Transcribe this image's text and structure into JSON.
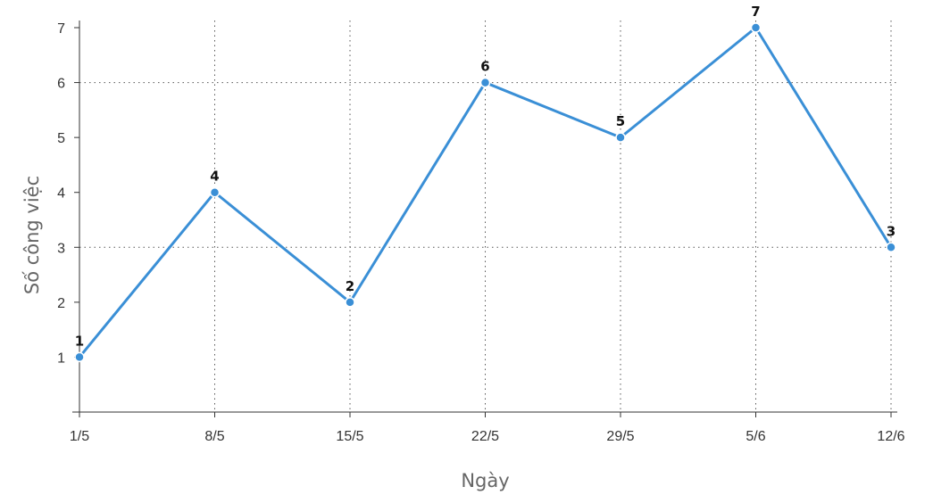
{
  "chart_data": {
    "type": "line",
    "categories": [
      "1/5",
      "8/5",
      "15/5",
      "22/5",
      "29/5",
      "5/6",
      "12/6"
    ],
    "series": [
      {
        "values": [
          1,
          4,
          2,
          6,
          5,
          7,
          3
        ]
      }
    ],
    "xlabel": "Ngày",
    "ylabel": "Số công việc",
    "ylim": [
      0,
      7
    ],
    "yticks": [
      1,
      2,
      3,
      4,
      5,
      6,
      7
    ],
    "grid": true,
    "data_labels": true,
    "colors": {
      "line": "#3a8fd6"
    }
  }
}
